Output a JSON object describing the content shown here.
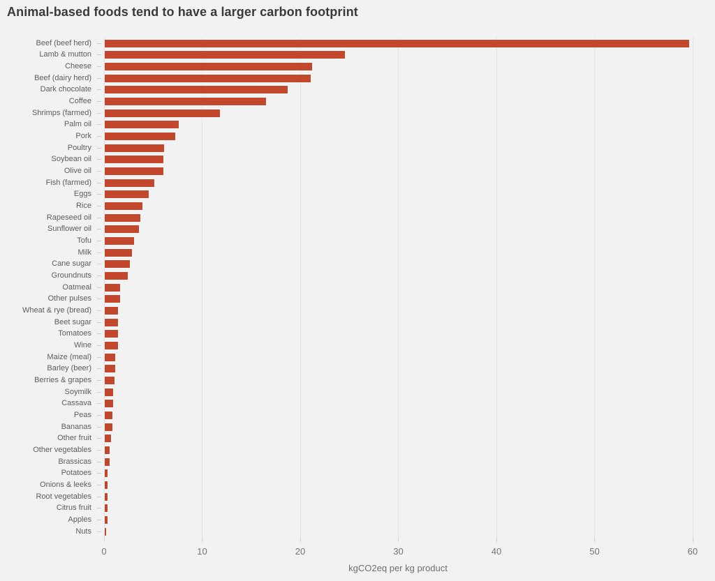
{
  "page": {
    "background_color": "#f2f2f2"
  },
  "chart_data": {
    "type": "bar",
    "orientation": "horizontal",
    "title": "Animal-based foods tend to have a larger carbon footprint",
    "xlabel": "kgCO2eq per kg product",
    "xlim": [
      0,
      60
    ],
    "xticks": [
      0,
      10,
      20,
      30,
      40,
      50,
      60
    ],
    "grid": "vertical-gridlines-on",
    "legend": "none",
    "bar_color": "#c3472c",
    "categories": [
      "Beef (beef herd)",
      "Lamb & mutton",
      "Cheese",
      "Beef (dairy herd)",
      "Dark chocolate",
      "Coffee",
      "Shrimps (farmed)",
      "Palm oil",
      "Pork",
      "Poultry",
      "Soybean oil",
      "Olive oil",
      "Fish (farmed)",
      "Eggs",
      "Rice",
      "Rapeseed oil",
      "Sunflower oil",
      "Tofu",
      "Milk",
      "Cane sugar",
      "Groundnuts",
      "Oatmeal",
      "Other pulses",
      "Wheat & rye (bread)",
      "Beet sugar",
      "Tomatoes",
      "Wine",
      "Maize (meal)",
      "Barley (beer)",
      "Berries & grapes",
      "Soymilk",
      "Cassava",
      "Peas",
      "Bananas",
      "Other fruit",
      "Other vegetables",
      "Brassicas",
      "Potatoes",
      "Onions & leeks",
      "Root vegetables",
      "Citrus fruit",
      "Apples",
      "Nuts"
    ],
    "values": [
      59.6,
      24.5,
      21.2,
      21.0,
      18.7,
      16.5,
      11.8,
      7.6,
      7.2,
      6.1,
      6.0,
      6.0,
      5.1,
      4.5,
      3.9,
      3.7,
      3.5,
      3.0,
      2.8,
      2.6,
      2.4,
      1.6,
      1.6,
      1.4,
      1.4,
      1.4,
      1.4,
      1.1,
      1.1,
      1.0,
      0.9,
      0.9,
      0.8,
      0.8,
      0.7,
      0.5,
      0.5,
      0.3,
      0.3,
      0.3,
      0.3,
      0.3,
      0.2
    ]
  }
}
